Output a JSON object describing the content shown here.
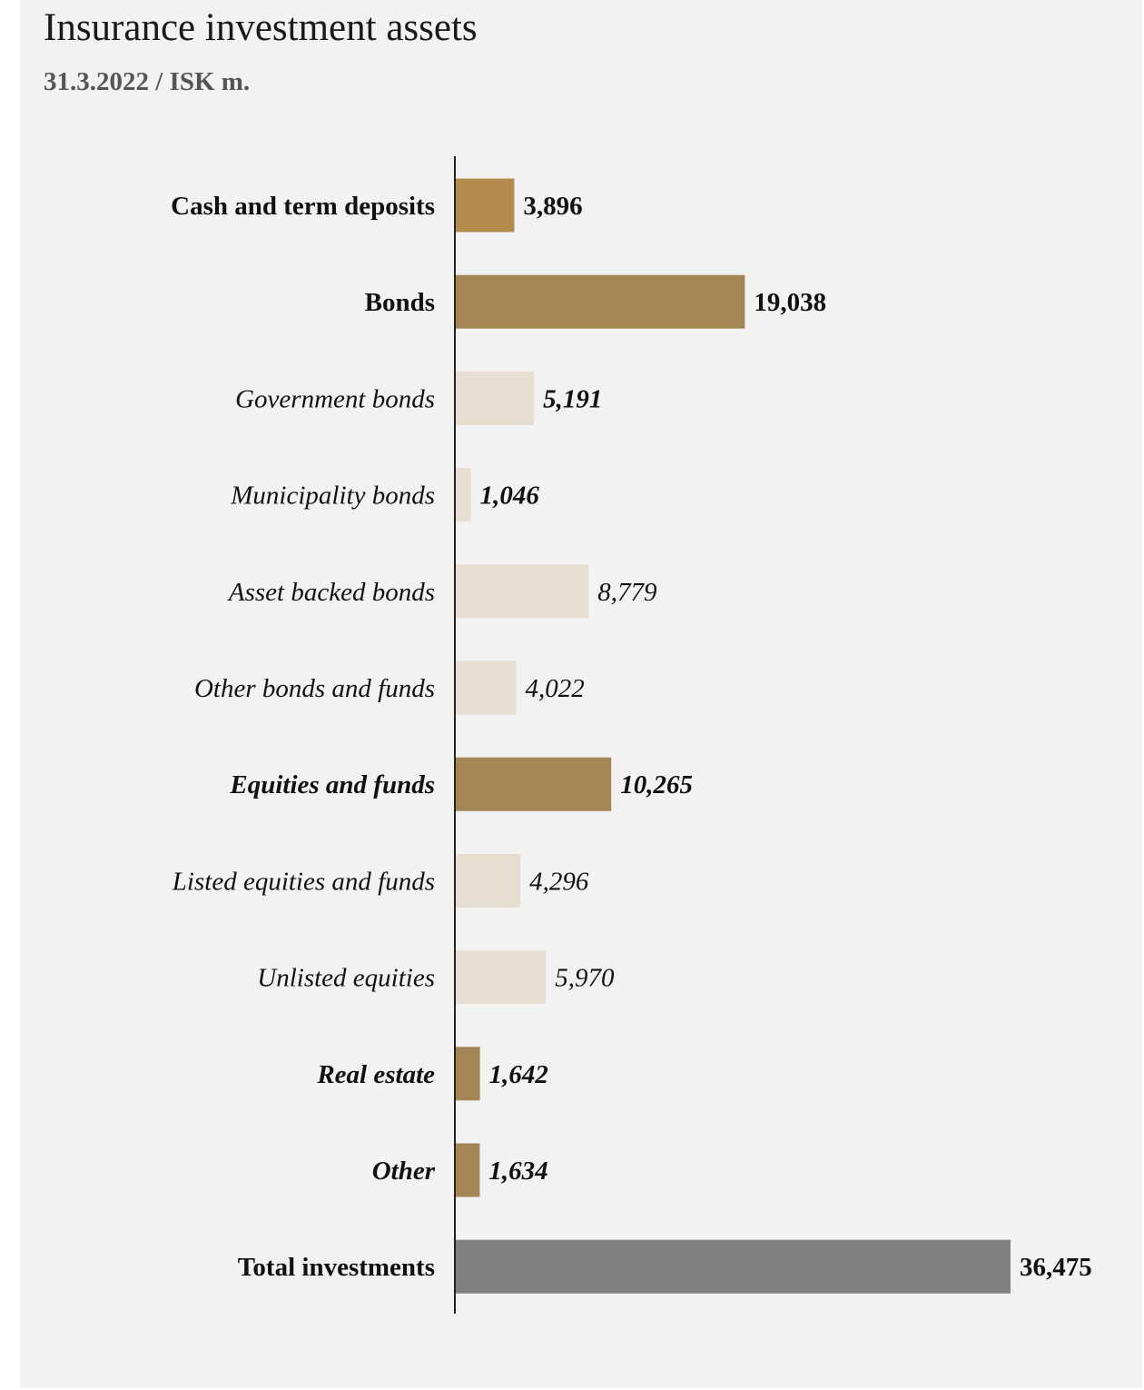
{
  "header": {
    "title": "Insurance investment assets",
    "subtitle": "31.3.2022 / ISK m."
  },
  "colors": {
    "panel_background": "#f2f2f2",
    "cash": "#b38b4d",
    "main": "#a38556",
    "sub": "#e8ddd1",
    "total": "#808080",
    "axis": "#222222"
  },
  "chart_data": {
    "type": "bar",
    "orientation": "horizontal",
    "title": "Insurance investment assets",
    "subtitle": "31.3.2022 / ISK m.",
    "xlim": [
      0,
      36475
    ],
    "grid": false,
    "legend": "none",
    "bars": [
      {
        "label": "Cash and term deposits",
        "value": 3896,
        "display": "3,896",
        "style": "main",
        "color": "#b38b4d"
      },
      {
        "label": "Bonds",
        "value": 19038,
        "display": "19,038",
        "style": "main",
        "color": "#a38556"
      },
      {
        "label": "Government bonds",
        "value": 5191,
        "display": "5,191",
        "style": "sub-bold",
        "color": "#e8ddd1"
      },
      {
        "label": "Municipality bonds",
        "value": 1046,
        "display": "1,046",
        "style": "sub-bold",
        "color": "#e8ddd1"
      },
      {
        "label": "Asset backed bonds",
        "value": 8779,
        "display": "8,779",
        "style": "sub",
        "color": "#e8ddd1"
      },
      {
        "label": "Other bonds and funds",
        "value": 4022,
        "display": "4,022",
        "style": "sub",
        "color": "#e8ddd1"
      },
      {
        "label": "Equities and funds",
        "value": 10265,
        "display": "10,265",
        "style": "main-italic",
        "color": "#a38556"
      },
      {
        "label": "Listed equities and funds",
        "value": 4296,
        "display": "4,296",
        "style": "sub",
        "color": "#e8ddd1"
      },
      {
        "label": "Unlisted equities",
        "value": 5970,
        "display": "5,970",
        "style": "sub",
        "color": "#e8ddd1"
      },
      {
        "label": "Real estate",
        "value": 1642,
        "display": "1,642",
        "style": "main-italic",
        "color": "#a38556"
      },
      {
        "label": "Other",
        "value": 1634,
        "display": "1,634",
        "style": "main-italic",
        "color": "#a38556"
      },
      {
        "label": "Total investments",
        "value": 36475,
        "display": "36,475",
        "style": "total",
        "color": "#808080"
      }
    ]
  }
}
